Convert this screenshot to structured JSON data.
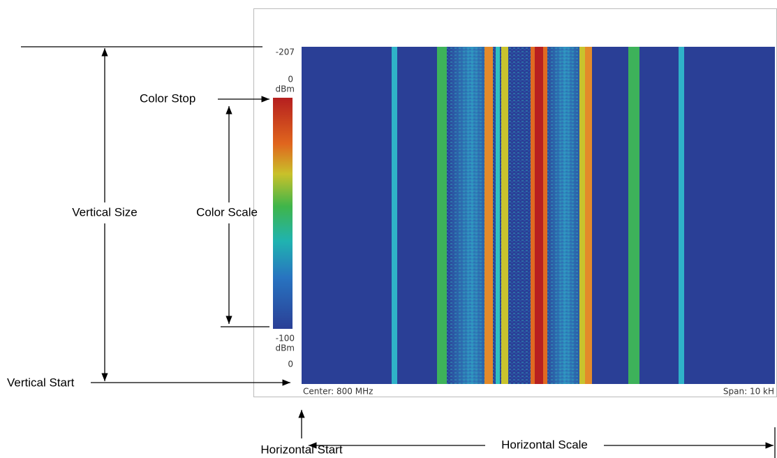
{
  "scale": {
    "top": "-207",
    "stop_value": "0",
    "stop_unit": "dBm",
    "start_value": "-100",
    "start_unit": "dBm",
    "bottom": "0"
  },
  "footer": {
    "center": "Center: 800 MHz",
    "span": "Span: 10 kH"
  },
  "callouts": {
    "color_stop": "Color Stop",
    "color_scale": "Color Scale",
    "vertical_size": "Vertical Size",
    "vertical_start": "Vertical Start",
    "horizontal_scale": "Horizontal Scale",
    "horizontal_start": "Horizontal Start"
  }
}
